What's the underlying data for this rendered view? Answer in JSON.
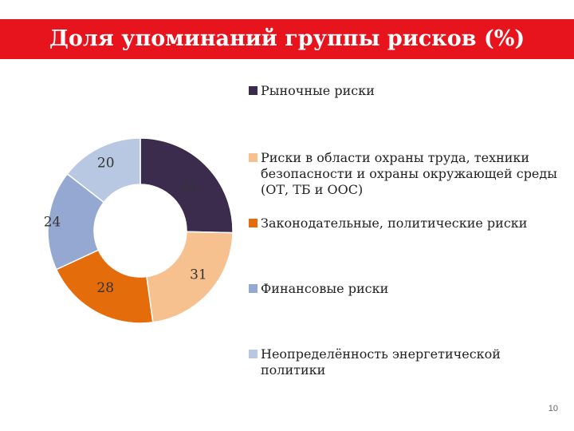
{
  "slide": {
    "title": "Доля упоминаний группы рисков (%)",
    "page_number": "10",
    "title_bar_color": "#e8141d"
  },
  "chart_data": {
    "type": "pie",
    "variant": "doughnut",
    "categories": [
      "Рыночные риски",
      "Риски в области охраны труда, техники безопасности и охраны окружающей среды (ОТ, ТБ и ООС)",
      "Законодательные, политические  риски",
      "Финансовые риски",
      "Неопределённость  энергетической политики"
    ],
    "values": [
      35,
      31,
      28,
      24,
      20
    ],
    "colors": [
      "#3b2c4e",
      "#f7c08f",
      "#e46c0a",
      "#95a8d1",
      "#b9c8e2"
    ],
    "legend_position": "right"
  }
}
